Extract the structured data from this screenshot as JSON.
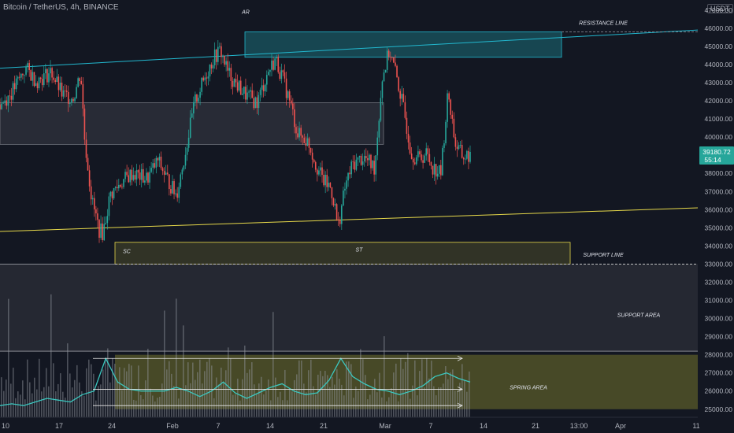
{
  "header": {
    "title": "Bitcoin / TetherUS, 4h, BINANCE",
    "currency": "USDT"
  },
  "price_badge": {
    "price": "39180.72",
    "countdown": "55:14"
  },
  "colors": {
    "background": "#131722",
    "up": "#26a69a",
    "down": "#ef5350",
    "resistance": "#22b8cf",
    "support": "#e6d84a",
    "ar_box": "#1b6e78",
    "mid_box": "#3a3d47",
    "st_box": "#4a4a2a",
    "spring": "#6b6a2c",
    "oscillator": "#3cc8c0",
    "badge": "#26a69a"
  },
  "chart_data": {
    "type": "candlestick",
    "y_axis": {
      "ticks": [
        "47000.00",
        "46000.00",
        "45000.00",
        "44000.00",
        "43000.00",
        "42000.00",
        "41000.00",
        "40000.00",
        "39000.00",
        "38000.00",
        "37000.00",
        "36000.00",
        "35000.00",
        "34000.00",
        "33000.00",
        "32000.00",
        "31000.00",
        "30000.00",
        "29000.00",
        "28000.00",
        "27000.00",
        "26000.00",
        "25000.00"
      ],
      "range": [
        24600,
        47600
      ]
    },
    "x_axis": {
      "ticks": [
        "10",
        "17",
        "24",
        "Feb",
        "7",
        "14",
        "21",
        "Mar",
        "7",
        "14",
        "21",
        "13:00",
        "Apr",
        "11"
      ]
    },
    "price_path": [
      [
        0,
        41800
      ],
      [
        3,
        42400
      ],
      [
        7,
        43800
      ],
      [
        10,
        43100
      ],
      [
        14,
        43600
      ],
      [
        17,
        42300
      ],
      [
        20,
        42200
      ],
      [
        22,
        43600
      ],
      [
        23,
        40000
      ],
      [
        25,
        36500
      ],
      [
        27,
        34900
      ],
      [
        28,
        34700
      ],
      [
        30,
        36800
      ],
      [
        33,
        37500
      ],
      [
        36,
        38000
      ],
      [
        40,
        37700
      ],
      [
        43,
        38700
      ],
      [
        46,
        37500
      ],
      [
        48,
        36800
      ],
      [
        50,
        38700
      ],
      [
        53,
        41900
      ],
      [
        56,
        43400
      ],
      [
        58,
        44300
      ],
      [
        60,
        44800
      ],
      [
        62,
        43600
      ],
      [
        64,
        43000
      ],
      [
        67,
        42300
      ],
      [
        70,
        41900
      ],
      [
        73,
        43600
      ],
      [
        75,
        44300
      ],
      [
        77,
        43200
      ],
      [
        79,
        41900
      ],
      [
        81,
        40200
      ],
      [
        84,
        39700
      ],
      [
        86,
        38500
      ],
      [
        88,
        37600
      ],
      [
        90,
        37200
      ],
      [
        91,
        36400
      ],
      [
        92,
        35000
      ],
      [
        94,
        37300
      ],
      [
        96,
        38500
      ],
      [
        99,
        38900
      ],
      [
        102,
        38300
      ],
      [
        104,
        43200
      ],
      [
        106,
        44800
      ],
      [
        108,
        43300
      ],
      [
        110,
        41400
      ],
      [
        112,
        39100
      ],
      [
        114,
        38800
      ],
      [
        116,
        39100
      ],
      [
        118,
        38300
      ],
      [
        120,
        38000
      ],
      [
        122,
        42500
      ],
      [
        124,
        39600
      ],
      [
        126,
        38900
      ],
      [
        128,
        39000
      ]
    ],
    "levels": {
      "resistance_line": [
        43800,
        45900
      ],
      "support_line": [
        34800,
        36100
      ]
    },
    "zones": [
      {
        "name": "AR zone",
        "price_range": [
          44400,
          45800
        ]
      },
      {
        "name": "mid range",
        "price_range": [
          39600,
          41900
        ]
      },
      {
        "name": "ST zone",
        "price_range": [
          33000,
          34200
        ]
      },
      {
        "name": "support area",
        "price_range": [
          28200,
          33000
        ]
      },
      {
        "name": "spring area",
        "price_range": [
          25000,
          28000
        ]
      }
    ],
    "annotations": [
      {
        "label": "AR",
        "price": 46800
      },
      {
        "label": "RESISTANCE LINE",
        "price": 46200
      },
      {
        "label": "SC",
        "price": 33600
      },
      {
        "label": "ST",
        "price": 33700
      },
      {
        "label": "SUPPORT LINE",
        "price": 33400
      },
      {
        "label": "SUPPORT AREA",
        "price": 30100
      },
      {
        "label": "SPRING AREA",
        "price": 26100
      }
    ],
    "volume": {
      "oscillator": [
        25200,
        25300,
        25200,
        25400,
        25600,
        25500,
        25400,
        25800,
        26000,
        27800,
        26500,
        26100,
        26000,
        26000,
        26000,
        26200,
        26000,
        25700,
        26000,
        26500,
        25900,
        25600,
        25900,
        26200,
        26400,
        26000,
        25800,
        25900,
        26600,
        27800,
        26800,
        26400,
        26100,
        26000,
        25800,
        26000,
        26300,
        26800,
        27000,
        26700,
        26500
      ]
    }
  }
}
